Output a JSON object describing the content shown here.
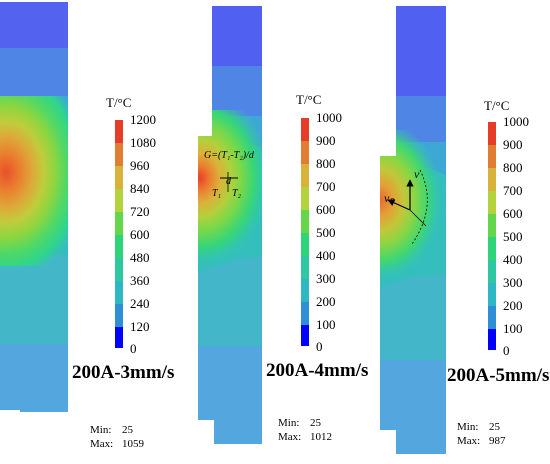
{
  "panels": [
    {
      "id": "3mm",
      "caption": "200A-3mm/s",
      "unit_label": "T/°C",
      "scale_ticks": [
        "1200",
        "1080",
        "960",
        "840",
        "720",
        "600",
        "480",
        "360",
        "240",
        "120",
        "0"
      ],
      "min_label": "Min:",
      "min_value": "25",
      "max_label": "Max:",
      "max_value": "1059"
    },
    {
      "id": "4mm",
      "caption": "200A-4mm/s",
      "unit_label": "T/°C",
      "scale_ticks": [
        "1000",
        "900",
        "800",
        "700",
        "600",
        "500",
        "400",
        "300",
        "200",
        "100",
        "0"
      ],
      "min_label": "Min:",
      "min_value": "25",
      "max_label": "Max:",
      "max_value": "1012",
      "annotations": {
        "gradient_formula": "G=(T₁-T₂)/d",
        "d": "d",
        "t1": "T₁",
        "t2": "T₂"
      }
    },
    {
      "id": "5mm",
      "caption": "200A-5mm/s",
      "unit_label": "T/°C",
      "scale_ticks": [
        "1000",
        "900",
        "800",
        "700",
        "600",
        "500",
        "400",
        "300",
        "200",
        "100",
        "0"
      ],
      "min_label": "Min:",
      "min_value": "25",
      "max_label": "Max:",
      "max_value": "987",
      "annotations": {
        "v": "v",
        "vp": "vₚ"
      }
    }
  ],
  "colormap": [
    "#0000ff",
    "#1e55e3",
    "#2f8fd6",
    "#2eb8c4",
    "#2ec8a0",
    "#2ed47a",
    "#64d64a",
    "#b4d23c",
    "#d8b23a",
    "#e07d32",
    "#e63c28"
  ]
}
